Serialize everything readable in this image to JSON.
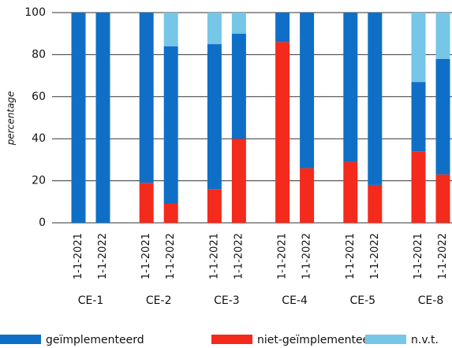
{
  "chart_data": {
    "type": "bar",
    "stacked": true,
    "y_label": "percentage",
    "groups": [
      {
        "name": "CE-1",
        "categories": [
          "1-1-2021",
          "1-1-2022"
        ]
      },
      {
        "name": "CE-2",
        "categories": [
          "1-1-2021",
          "1-1-2022"
        ]
      },
      {
        "name": "CE-3",
        "categories": [
          "1-1-2021",
          "1-1-2022"
        ]
      },
      {
        "name": "CE-4",
        "categories": [
          "1-1-2021",
          "1-1-2022"
        ]
      },
      {
        "name": "CE-5",
        "categories": [
          "1-1-2021",
          "1-1-2022"
        ]
      },
      {
        "name": "CE-8",
        "categories": [
          "1-1-2021",
          "1-1-2022"
        ]
      }
    ],
    "series": [
      {
        "name": "niet-geïmplementeerd",
        "color": "#f42a1c",
        "values": [
          0,
          0,
          19,
          9,
          16,
          40,
          86,
          26,
          29,
          18,
          34,
          23
        ]
      },
      {
        "name": "geïmplementeerd",
        "color": "#0f6fc6",
        "values": [
          100,
          100,
          81,
          75,
          69,
          50,
          14,
          74,
          71,
          82,
          33,
          55
        ]
      },
      {
        "name": "n.v.t.",
        "color": "#76c6e8",
        "values": [
          0,
          0,
          0,
          16,
          15,
          10,
          0,
          0,
          0,
          0,
          33,
          22
        ]
      }
    ],
    "legend_order": [
      1,
      0,
      2
    ],
    "ylim": [
      0,
      100
    ],
    "yticks": [
      0,
      20,
      40,
      60,
      80,
      100
    ],
    "grid": true
  }
}
